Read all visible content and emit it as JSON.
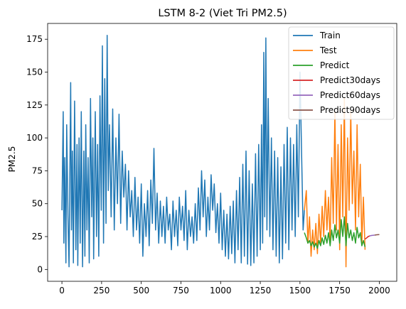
{
  "chart_data": {
    "type": "line",
    "title": "LSTM 8-2 (Viet Tri PM2.5)",
    "xlabel": "",
    "ylabel": "PM2.5",
    "xlim": [
      -90,
      2110
    ],
    "ylim": [
      -9,
      187
    ],
    "xticks": [
      0,
      250,
      500,
      750,
      1000,
      1250,
      1500,
      1750,
      2000
    ],
    "yticks": [
      0,
      25,
      50,
      75,
      100,
      125,
      150,
      175
    ],
    "grid": false,
    "legend_position": "top-right",
    "series": [
      {
        "name": "Train",
        "color": "#1f77b4",
        "x": [
          0,
          8,
          12,
          18,
          25,
          30,
          38,
          45,
          55,
          60,
          66,
          72,
          80,
          88,
          95,
          100,
          108,
          115,
          122,
          130,
          138,
          145,
          150,
          158,
          165,
          172,
          180,
          188,
          195,
          200,
          210,
          218,
          225,
          232,
          240,
          248,
          255,
          262,
          270,
          278,
          285,
          292,
          300,
          310,
          320,
          330,
          340,
          350,
          360,
          370,
          380,
          390,
          400,
          410,
          420,
          430,
          440,
          450,
          460,
          470,
          480,
          490,
          500,
          510,
          520,
          530,
          540,
          550,
          560,
          570,
          580,
          590,
          600,
          610,
          620,
          630,
          640,
          650,
          660,
          670,
          680,
          690,
          700,
          710,
          720,
          730,
          740,
          750,
          760,
          770,
          780,
          790,
          800,
          810,
          820,
          830,
          840,
          850,
          860,
          870,
          880,
          890,
          900,
          910,
          920,
          930,
          940,
          950,
          960,
          970,
          980,
          990,
          1000,
          1010,
          1020,
          1030,
          1040,
          1050,
          1060,
          1070,
          1080,
          1090,
          1100,
          1110,
          1120,
          1130,
          1140,
          1150,
          1160,
          1170,
          1180,
          1190,
          1200,
          1210,
          1220,
          1230,
          1240,
          1250,
          1258,
          1265,
          1272,
          1278,
          1285,
          1292,
          1300,
          1310,
          1320,
          1330,
          1340,
          1350,
          1360,
          1370,
          1380,
          1390,
          1400,
          1410,
          1420,
          1430,
          1440,
          1450,
          1460,
          1470,
          1480,
          1490,
          1500,
          1510,
          1520,
          1528
        ],
        "y": [
          45,
          120,
          20,
          85,
          5,
          110,
          40,
          2,
          142,
          30,
          90,
          5,
          128,
          15,
          95,
          3,
          100,
          20,
          120,
          2,
          90,
          10,
          110,
          30,
          85,
          5,
          130,
          40,
          100,
          8,
          120,
          25,
          95,
          10,
          132,
          45,
          170,
          20,
          145,
          35,
          178,
          60,
          110,
          40,
          122,
          30,
          100,
          50,
          118,
          35,
          90,
          55,
          80,
          30,
          75,
          40,
          60,
          25,
          70,
          30,
          55,
          20,
          65,
          10,
          50,
          25,
          60,
          18,
          68,
          35,
          92,
          30,
          58,
          20,
          52,
          25,
          48,
          20,
          55,
          30,
          42,
          15,
          52,
          25,
          45,
          18,
          55,
          30,
          48,
          22,
          60,
          15,
          45,
          25,
          40,
          20,
          50,
          22,
          62,
          30,
          75,
          40,
          68,
          25,
          55,
          30,
          72,
          45,
          65,
          28,
          50,
          20,
          58,
          15,
          45,
          10,
          42,
          8,
          48,
          12,
          52,
          5,
          60,
          15,
          70,
          5,
          80,
          10,
          90,
          4,
          75,
          3,
          65,
          5,
          88,
          10,
          95,
          15,
          110,
          20,
          165,
          40,
          176,
          30,
          130,
          25,
          100,
          15,
          90,
          10,
          85,
          5,
          78,
          8,
          95,
          20,
          108,
          15,
          100,
          30,
          95,
          25,
          110,
          40,
          150,
          90,
          30,
          45
        ],
        "approximate": true
      },
      {
        "name": "Test",
        "color": "#ff7f0e",
        "x": [
          1528,
          1540,
          1550,
          1560,
          1570,
          1580,
          1590,
          1600,
          1610,
          1620,
          1630,
          1640,
          1650,
          1660,
          1670,
          1680,
          1690,
          1700,
          1710,
          1720,
          1730,
          1740,
          1750,
          1760,
          1770,
          1780,
          1790,
          1800,
          1810,
          1820,
          1830,
          1840,
          1850,
          1860,
          1870,
          1880,
          1890,
          1900,
          1910
        ],
        "y": [
          45,
          60,
          20,
          40,
          10,
          30,
          15,
          35,
          12,
          42,
          20,
          48,
          25,
          60,
          30,
          55,
          20,
          85,
          35,
          120,
          30,
          95,
          15,
          110,
          40,
          130,
          2,
          100,
          45,
          120,
          50,
          90,
          30,
          110,
          40,
          80,
          20,
          55,
          15
        ],
        "approximate": true
      },
      {
        "name": "Predict",
        "color": "#2ca02c",
        "x": [
          1528,
          1540,
          1550,
          1560,
          1570,
          1580,
          1590,
          1600,
          1610,
          1620,
          1630,
          1640,
          1650,
          1660,
          1670,
          1680,
          1690,
          1700,
          1710,
          1720,
          1730,
          1740,
          1750,
          1760,
          1770,
          1780,
          1790,
          1800,
          1810,
          1820,
          1830,
          1840,
          1850,
          1860,
          1870,
          1880,
          1890,
          1900,
          1910
        ],
        "y": [
          28,
          24,
          20,
          22,
          18,
          21,
          17,
          20,
          16,
          22,
          18,
          24,
          19,
          26,
          20,
          28,
          18,
          30,
          22,
          34,
          24,
          30,
          20,
          38,
          25,
          40,
          18,
          35,
          24,
          30,
          22,
          28,
          20,
          32,
          24,
          28,
          18,
          22,
          17
        ],
        "approximate": true
      },
      {
        "name": "Predict30days",
        "color": "#d62728",
        "x": [
          1910,
          1920,
          1930,
          1940
        ],
        "y": [
          23,
          24,
          25,
          25.5
        ],
        "approximate": true
      },
      {
        "name": "Predict60days",
        "color": "#9467bd",
        "x": [
          1940,
          1950,
          1960,
          1970
        ],
        "y": [
          25.5,
          25.8,
          26,
          26.1
        ],
        "approximate": true
      },
      {
        "name": "Predict90days",
        "color": "#8c564b",
        "x": [
          1970,
          1980,
          1990,
          2000
        ],
        "y": [
          26.1,
          26.3,
          26.4,
          26.5
        ],
        "approximate": true
      }
    ]
  }
}
